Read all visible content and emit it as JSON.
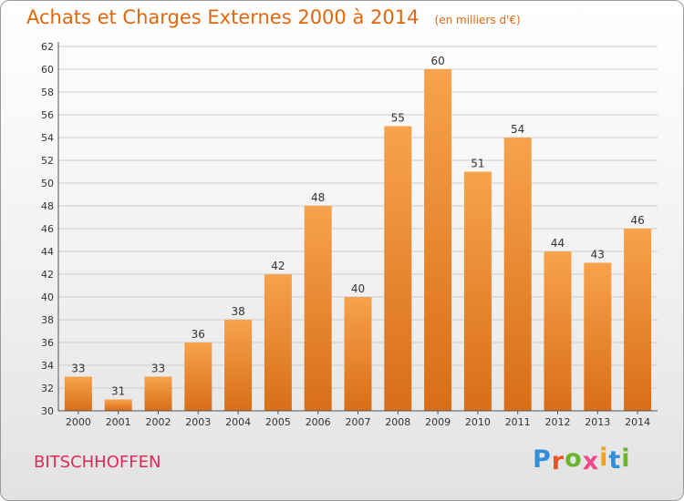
{
  "header": {
    "title": "Achats et Charges Externes 2000 à 2014",
    "subtitle": "(en milliers d'€)"
  },
  "footer": {
    "city": "BITSCHHOFFEN",
    "logo": "Proxiti"
  },
  "chart_data": {
    "type": "bar",
    "title": "Achats et Charges Externes 2000 à 2014",
    "subtitle": "(en milliers d'€)",
    "categories": [
      "2000",
      "2001",
      "2002",
      "2003",
      "2004",
      "2005",
      "2006",
      "2007",
      "2008",
      "2009",
      "2010",
      "2011",
      "2012",
      "2013",
      "2014"
    ],
    "values": [
      33,
      31,
      33,
      36,
      38,
      42,
      48,
      40,
      55,
      60,
      51,
      54,
      44,
      43,
      46
    ],
    "ylim": [
      30,
      62
    ],
    "yticks": [
      30,
      32,
      34,
      36,
      38,
      40,
      42,
      44,
      46,
      48,
      50,
      52,
      54,
      56,
      58,
      60,
      62
    ],
    "grid": true,
    "legend": "none",
    "colors": {
      "bar_light": "#f7a24c",
      "bar_dark": "#d86e17",
      "grid": "#cccccc",
      "axis": "#555555",
      "title": "#e2660f",
      "city": "#e0295a"
    }
  }
}
